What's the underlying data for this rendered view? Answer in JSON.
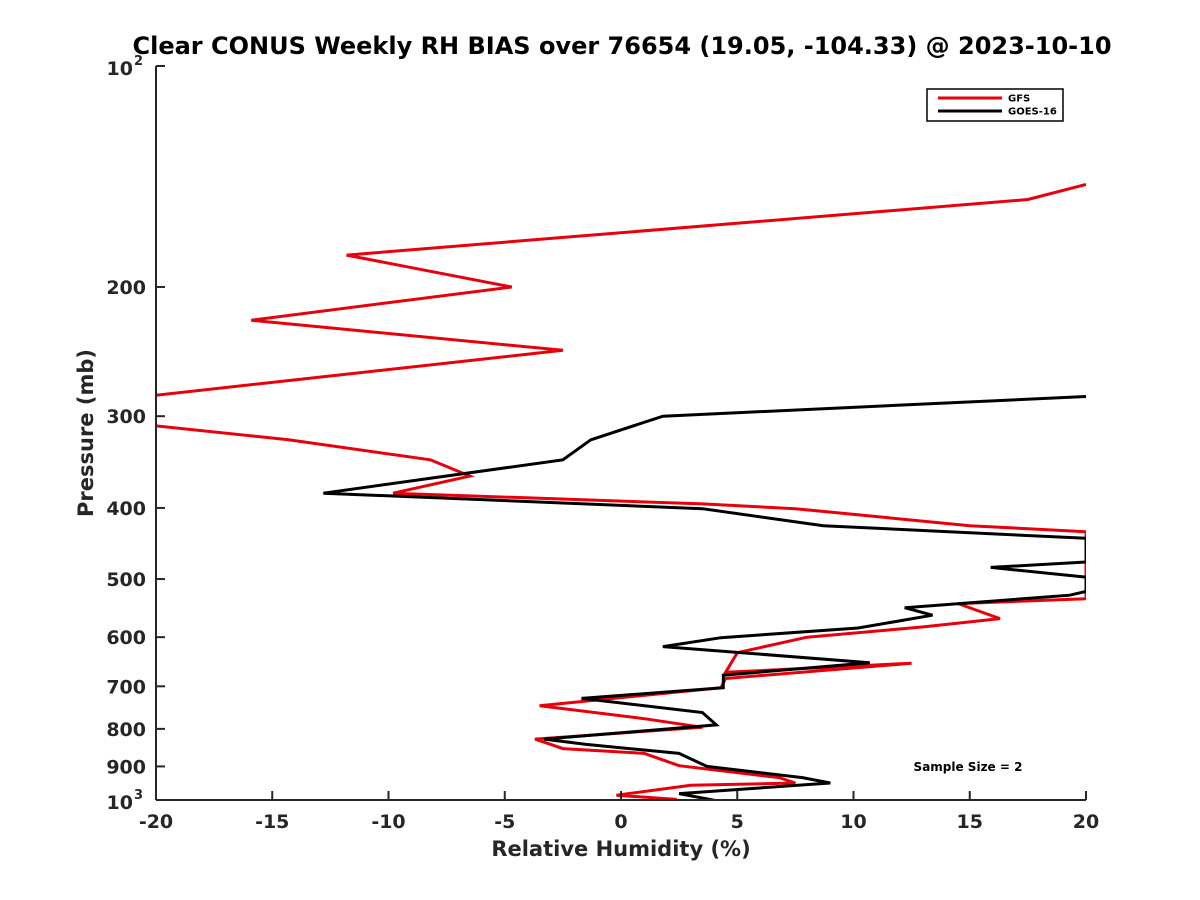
{
  "chart_data": {
    "type": "line",
    "title": "Clear CONUS Weekly RH BIAS over 76654 (19.05, -104.33) @ 2023-10-10",
    "xlabel": "Relative Humidity (%)",
    "ylabel": "Pressure (mb)",
    "xlim": [
      -20,
      20
    ],
    "ylim": [
      100,
      1000
    ],
    "yscale": "log",
    "yreversed": true,
    "grid": false,
    "legend_position": "top-right",
    "x_ticks": [
      -20,
      -15,
      -10,
      -5,
      0,
      5,
      10,
      15,
      20
    ],
    "x_tick_labels": [
      "-20",
      "-15",
      "-10",
      "-5",
      "0",
      "5",
      "10",
      "15",
      "20"
    ],
    "y_ticks": [
      200,
      300,
      400,
      500,
      600,
      700,
      800,
      900
    ],
    "y_tick_labels": [
      "200",
      "300",
      "400",
      "500",
      "600",
      "700",
      "800",
      "900"
    ],
    "y_decade_ticks": [
      {
        "value": 100,
        "base": "10",
        "exp": "2"
      },
      {
        "value": 1000,
        "base": "10",
        "exp": "3"
      }
    ],
    "series": [
      {
        "name": "GFS",
        "color": "#e8000b",
        "x": [
          20,
          17.5,
          -11.8,
          -4.7,
          -15.9,
          -2.5,
          -20.5,
          -20.5,
          -14.3,
          -8.2,
          -6.5,
          -9.8,
          3.5,
          7.5,
          15,
          20,
          20,
          14.5,
          16.3,
          13,
          8,
          5,
          4.5,
          12.5,
          4.5,
          4.3,
          -3.5,
          1,
          3.5,
          -3.7,
          -2.5,
          1,
          2.5,
          6.8,
          7.5,
          3,
          -0.2,
          2.4
        ],
        "y": [
          145,
          152,
          181,
          200,
          222,
          244,
          282,
          308,
          323,
          344,
          362,
          382,
          395,
          401,
          423,
          431,
          532,
          540,
          566,
          581,
          600,
          630,
          670,
          651,
          683,
          703,
          744,
          775,
          796,
          826,
          851,
          864,
          898,
          932,
          948,
          955,
          985,
          998
        ]
      },
      {
        "name": "GOES-16",
        "color": "#000000",
        "x": [
          20,
          1.8,
          -1.3,
          -2.5,
          -12.8,
          3.5,
          8.7,
          20,
          20,
          15.9,
          20,
          20,
          19.3,
          12.2,
          13.4,
          10.2,
          4.3,
          1.8,
          10.7,
          4.4,
          4.4,
          -1.7,
          3.5,
          4.1,
          -3.3,
          -1.5,
          2.5,
          2.7,
          3.7,
          7.8,
          9,
          2.5,
          4.3
        ],
        "y": [
          282,
          300,
          323,
          344,
          382,
          401,
          423,
          440,
          474,
          482,
          497,
          520,
          526,
          547,
          560,
          583,
          601,
          618,
          650,
          676,
          703,
          727,
          760,
          790,
          826,
          840,
          864,
          870,
          900,
          932,
          948,
          980,
          1005
        ]
      }
    ],
    "annotations": [
      "Sample Size = 2"
    ]
  }
}
